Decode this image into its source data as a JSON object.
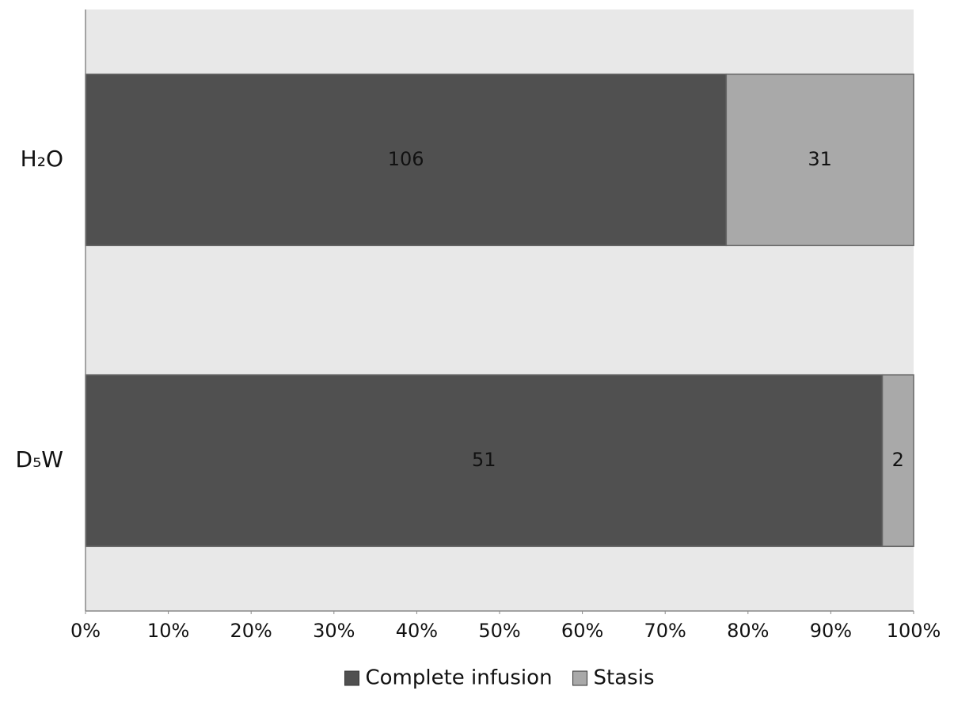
{
  "chart_data": {
    "type": "bar",
    "orientation": "horizontal",
    "stack": "percent",
    "categories": [
      "H₂O",
      "D₅W"
    ],
    "series": [
      {
        "name": "Complete infusion",
        "color": "#505050",
        "values": [
          106,
          51
        ]
      },
      {
        "name": "Stasis",
        "color": "#a9a9a9",
        "values": [
          31,
          2
        ]
      }
    ],
    "xlim": [
      0,
      100
    ],
    "xticks": [
      {
        "value": 0,
        "label": "0%"
      },
      {
        "value": 10,
        "label": "10%"
      },
      {
        "value": 20,
        "label": "20%"
      },
      {
        "value": 30,
        "label": "30%"
      },
      {
        "value": 40,
        "label": "40%"
      },
      {
        "value": 50,
        "label": "50%"
      },
      {
        "value": 60,
        "label": "60%"
      },
      {
        "value": 70,
        "label": "70%"
      },
      {
        "value": 80,
        "label": "80%"
      },
      {
        "value": 90,
        "label": "90%"
      },
      {
        "value": 100,
        "label": "100%"
      }
    ],
    "legend": "bottom"
  }
}
